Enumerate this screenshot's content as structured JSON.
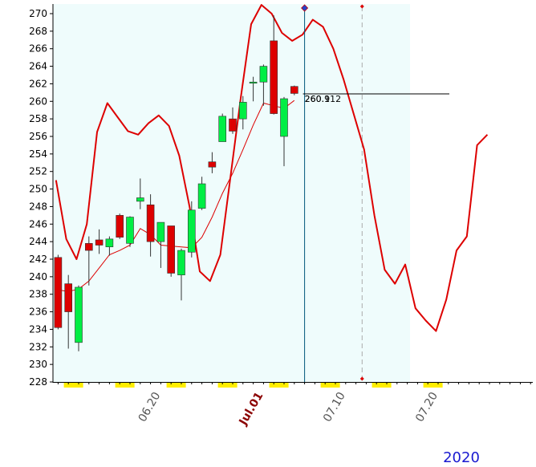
{
  "chart_data": {
    "type": "candlestick",
    "title": "",
    "xlabel": "",
    "ylabel": "",
    "ylim": [
      228,
      271
    ],
    "y_ticks": [
      228,
      230,
      232,
      234,
      236,
      238,
      240,
      242,
      244,
      246,
      248,
      250,
      252,
      254,
      256,
      258,
      260,
      262,
      264,
      266,
      268,
      270
    ],
    "x_date_labels": [
      {
        "text": "06.20",
        "index": 9.5,
        "style": "normal"
      },
      {
        "text": "Jul.01",
        "index": 19.5,
        "style": "month"
      },
      {
        "text": "07.10",
        "index": 27.5,
        "style": "normal"
      },
      {
        "text": "07.20",
        "index": 36.5,
        "style": "normal"
      }
    ],
    "year_label": "2020",
    "colors": {
      "up": "#00ee44",
      "down": "#dd0000",
      "band": "#dd0000",
      "moving_average": "#dd0000",
      "plot_background": "#effcfc",
      "weekend_marker": "#ffee00",
      "cursor_line": "#00557a",
      "future_line": "#aaaaaa"
    },
    "candles": [
      {
        "open": 242.2,
        "high": 242.5,
        "low": 234.0,
        "close": 234.2
      },
      {
        "open": 239.2,
        "high": 240.2,
        "low": 231.8,
        "close": 236.0
      },
      {
        "open": 232.5,
        "high": 239.0,
        "low": 231.5,
        "close": 238.8
      },
      {
        "open": 243.8,
        "high": 244.6,
        "low": 239.0,
        "close": 243.0
      },
      {
        "open": 244.2,
        "high": 245.4,
        "low": 242.6,
        "close": 243.6
      },
      {
        "open": 243.4,
        "high": 244.6,
        "low": 242.4,
        "close": 244.3
      },
      {
        "open": 247.0,
        "high": 247.2,
        "low": 244.3,
        "close": 244.5
      },
      {
        "open": 243.8,
        "high": 246.9,
        "low": 243.4,
        "close": 246.8
      },
      {
        "open": 248.6,
        "high": 251.2,
        "low": 247.7,
        "close": 249.0
      },
      {
        "open": 248.2,
        "high": 249.4,
        "low": 242.3,
        "close": 244.0
      },
      {
        "open": 244.0,
        "high": 246.2,
        "low": 241.0,
        "close": 246.2
      },
      {
        "open": 245.8,
        "high": 245.8,
        "low": 240.0,
        "close": 240.4
      },
      {
        "open": 240.2,
        "high": 243.2,
        "low": 237.3,
        "close": 243.0
      },
      {
        "open": 242.8,
        "high": 248.6,
        "low": 242.2,
        "close": 247.6
      },
      {
        "open": 247.8,
        "high": 251.4,
        "low": 247.6,
        "close": 250.6
      },
      {
        "open": 253.1,
        "high": 254.2,
        "low": 251.8,
        "close": 252.5
      },
      {
        "open": 255.4,
        "high": 258.6,
        "low": 255.4,
        "close": 258.3
      },
      {
        "open": 258.0,
        "high": 259.3,
        "low": 256.3,
        "close": 256.6
      },
      {
        "open": 258.0,
        "high": 260.6,
        "low": 256.8,
        "close": 259.9
      },
      {
        "open": 262.1,
        "high": 262.8,
        "low": 260.0,
        "close": 262.2
      },
      {
        "open": 262.2,
        "high": 264.2,
        "low": 259.5,
        "close": 264.0
      },
      {
        "open": 266.9,
        "high": 269.8,
        "low": 258.5,
        "close": 258.6
      },
      {
        "open": 256.0,
        "high": 260.5,
        "low": 252.6,
        "close": 260.3
      },
      {
        "open": 261.7,
        "high": 261.8,
        "low": 260.7,
        "close": 260.9
      }
    ],
    "moving_average": [
      238.5,
      238.3,
      238.6,
      239.5,
      241.0,
      242.5,
      243.0,
      243.6,
      245.5,
      244.8,
      243.6,
      243.5,
      243.4,
      243.3,
      244.5,
      246.8,
      249.5,
      251.8,
      254.5,
      257.3,
      259.8,
      259.5,
      259.2,
      260.1
    ],
    "upper_band": [
      {
        "i": -0.2,
        "v": 251.0
      },
      {
        "i": 0.8,
        "v": 244.3
      },
      {
        "i": 1.8,
        "v": 242.0
      },
      {
        "i": 2.8,
        "v": 246.0
      },
      {
        "i": 3.8,
        "v": 256.5
      },
      {
        "i": 4.8,
        "v": 259.8
      },
      {
        "i": 5.8,
        "v": 258.2
      },
      {
        "i": 6.8,
        "v": 256.6
      },
      {
        "i": 7.8,
        "v": 256.2
      },
      {
        "i": 8.8,
        "v": 257.5
      },
      {
        "i": 9.8,
        "v": 258.4
      },
      {
        "i": 10.8,
        "v": 257.2
      },
      {
        "i": 11.8,
        "v": 253.8
      },
      {
        "i": 12.8,
        "v": 248.0
      },
      {
        "i": 13.8,
        "v": 240.6
      },
      {
        "i": 14.8,
        "v": 239.5
      },
      {
        "i": 15.8,
        "v": 242.5
      },
      {
        "i": 16.8,
        "v": 251.5
      },
      {
        "i": 17.8,
        "v": 260.5
      },
      {
        "i": 18.8,
        "v": 268.8
      },
      {
        "i": 19.8,
        "v": 271.0
      },
      {
        "i": 20.8,
        "v": 270.0
      },
      {
        "i": 21.8,
        "v": 267.8
      },
      {
        "i": 22.8,
        "v": 266.9
      },
      {
        "i": 23.8,
        "v": 267.6
      },
      {
        "i": 24.8,
        "v": 269.3
      },
      {
        "i": 25.8,
        "v": 268.5
      },
      {
        "i": 26.8,
        "v": 266.0
      },
      {
        "i": 27.8,
        "v": 262.5
      },
      {
        "i": 28.8,
        "v": 258.5
      },
      {
        "i": 29.8,
        "v": 254.5
      },
      {
        "i": 30.8,
        "v": 247.0
      },
      {
        "i": 31.8,
        "v": 240.8
      },
      {
        "i": 32.8,
        "v": 239.2
      },
      {
        "i": 33.8,
        "v": 241.4
      },
      {
        "i": 34.8,
        "v": 236.4
      },
      {
        "i": 35.8,
        "v": 235.0
      },
      {
        "i": 36.8,
        "v": 233.8
      },
      {
        "i": 37.8,
        "v": 237.4
      },
      {
        "i": 38.8,
        "v": 243.0
      },
      {
        "i": 39.8,
        "v": 244.6
      },
      {
        "i": 40.8,
        "v": 255.0
      },
      {
        "i": 41.8,
        "v": 256.2
      }
    ],
    "weekend_markers": [
      1.5,
      6.5,
      11.5,
      16.5,
      21.5,
      26.5,
      31.5,
      36.5
    ],
    "cursor_index": 24,
    "future_index": 29.6,
    "price_label_lines": [
      "260.912",
      "260.1"
    ],
    "grid": false,
    "legend": "none"
  }
}
